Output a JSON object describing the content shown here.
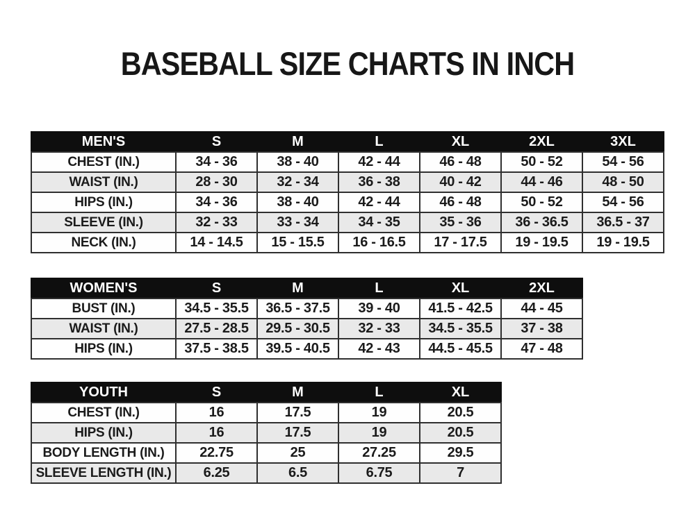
{
  "page": {
    "title": "BASEBALL SIZE CHARTS IN INCH",
    "unit": "inch"
  },
  "colors": {
    "header_bg": "#0e0e0e",
    "header_text": "#ffffff",
    "shaded_row_bg": "#e9e9e9",
    "border": "#2f2f2f",
    "text": "#1b1b1b",
    "page_bg": "#ffffff"
  },
  "tables": [
    {
      "id": "mens",
      "title": "MEN'S",
      "header": [
        "MEN'S",
        "S",
        "M",
        "L",
        "XL",
        "2XL",
        "3XL"
      ],
      "rows": [
        [
          "CHEST (IN.)",
          "34 - 36",
          "38 - 40",
          "42 - 44",
          "46 - 48",
          "50 - 52",
          "54 - 56"
        ],
        [
          "WAIST (IN.)",
          "28 - 30",
          "32 - 34",
          "36 - 38",
          "40 - 42",
          "44 - 46",
          "48 - 50"
        ],
        [
          "HIPS (IN.)",
          "34 - 36",
          "38 - 40",
          "42 - 44",
          "46 - 48",
          "50 - 52",
          "54 - 56"
        ],
        [
          "SLEEVE (IN.)",
          "32 - 33",
          "33 - 34",
          "34 - 35",
          "35 - 36",
          "36 - 36.5",
          "36.5 - 37"
        ],
        [
          "NECK (IN.)",
          "14 - 14.5",
          "15 - 15.5",
          "16 - 16.5",
          "17 - 17.5",
          "19 - 19.5",
          "19 - 19.5"
        ]
      ]
    },
    {
      "id": "womens",
      "title": "WOMEN'S",
      "header": [
        "WOMEN'S",
        "S",
        "M",
        "L",
        "XL",
        "2XL"
      ],
      "rows": [
        [
          "BUST (IN.)",
          "34.5 - 35.5",
          "36.5 - 37.5",
          "39 - 40",
          "41.5 - 42.5",
          "44 - 45"
        ],
        [
          "WAIST (IN.)",
          "27.5 - 28.5",
          "29.5 - 30.5",
          "32 - 33",
          "34.5 - 35.5",
          "37 - 38"
        ],
        [
          "HIPS (IN.)",
          "37.5 - 38.5",
          "39.5 - 40.5",
          "42 - 43",
          "44.5 - 45.5",
          "47 - 48"
        ]
      ]
    },
    {
      "id": "youth",
      "title": "YOUTH",
      "header": [
        "YOUTH",
        "S",
        "M",
        "L",
        "XL"
      ],
      "rows": [
        [
          "CHEST (IN.)",
          "16",
          "17.5",
          "19",
          "20.5"
        ],
        [
          "HIPS (IN.)",
          "16",
          "17.5",
          "19",
          "20.5"
        ],
        [
          "BODY LENGTH (IN.)",
          "22.75",
          "25",
          "27.25",
          "29.5"
        ],
        [
          "SLEEVE LENGTH (IN.)",
          "6.25",
          "6.5",
          "6.75",
          "7"
        ]
      ]
    }
  ],
  "chart_data": [
    {
      "type": "table",
      "title": "MEN'S",
      "columns": [
        "MEN'S",
        "S",
        "M",
        "L",
        "XL",
        "2XL",
        "3XL"
      ],
      "rows": [
        [
          "CHEST (IN.)",
          "34 - 36",
          "38 - 40",
          "42 - 44",
          "46 - 48",
          "50 - 52",
          "54 - 56"
        ],
        [
          "WAIST (IN.)",
          "28 - 30",
          "32 - 34",
          "36 - 38",
          "40 - 42",
          "44 - 46",
          "48 - 50"
        ],
        [
          "HIPS (IN.)",
          "34 - 36",
          "38 - 40",
          "42 - 44",
          "46 - 48",
          "50 - 52",
          "54 - 56"
        ],
        [
          "SLEEVE (IN.)",
          "32 - 33",
          "33 - 34",
          "34 - 35",
          "35 - 36",
          "36 - 36.5",
          "36.5 - 37"
        ],
        [
          "NECK (IN.)",
          "14 - 14.5",
          "15 - 15.5",
          "16 - 16.5",
          "17 - 17.5",
          "19 - 19.5",
          "19 - 19.5"
        ]
      ]
    },
    {
      "type": "table",
      "title": "WOMEN'S",
      "columns": [
        "WOMEN'S",
        "S",
        "M",
        "L",
        "XL",
        "2XL"
      ],
      "rows": [
        [
          "BUST (IN.)",
          "34.5 - 35.5",
          "36.5 - 37.5",
          "39 - 40",
          "41.5 - 42.5",
          "44 - 45"
        ],
        [
          "WAIST (IN.)",
          "27.5 - 28.5",
          "29.5 - 30.5",
          "32 - 33",
          "34.5 - 35.5",
          "37 - 38"
        ],
        [
          "HIPS (IN.)",
          "37.5 - 38.5",
          "39.5 - 40.5",
          "42 - 43",
          "44.5 - 45.5",
          "47 - 48"
        ]
      ]
    },
    {
      "type": "table",
      "title": "YOUTH",
      "columns": [
        "YOUTH",
        "S",
        "M",
        "L",
        "XL"
      ],
      "rows": [
        [
          "CHEST (IN.)",
          "16",
          "17.5",
          "19",
          "20.5"
        ],
        [
          "HIPS (IN.)",
          "16",
          "17.5",
          "19",
          "20.5"
        ],
        [
          "BODY LENGTH (IN.)",
          "22.75",
          "25",
          "27.25",
          "29.5"
        ],
        [
          "SLEEVE LENGTH (IN.)",
          "6.25",
          "6.5",
          "6.75",
          "7"
        ]
      ]
    }
  ]
}
